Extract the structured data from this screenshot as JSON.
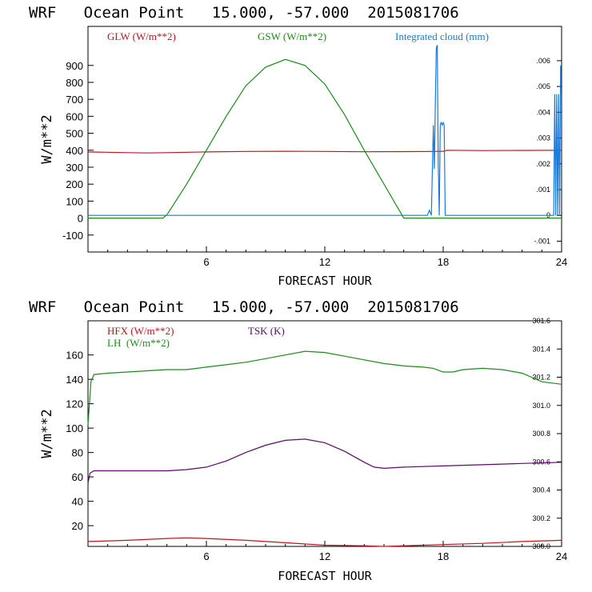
{
  "chart_data": [
    {
      "type": "line",
      "title": "WRF   Ocean Point   15.000, -57.000  2015081706",
      "xlabel": "FORECAST HOUR",
      "ylabel": "W/m**2",
      "xlim": [
        0,
        24
      ],
      "ylim": [
        -200,
        1130
      ],
      "x_ticks": [
        "6",
        "12",
        "18",
        "24"
      ],
      "y_ticks": [
        "-100",
        "0",
        "100",
        "200",
        "300",
        "400",
        "500",
        "600",
        "700",
        "800",
        "900"
      ],
      "y2_ticks": [
        "-.001",
        "0",
        ".001",
        ".002",
        ".003",
        ".004",
        ".005",
        ".006"
      ],
      "y2_range": [
        -0.00142,
        0.00733
      ],
      "series": [
        {
          "name": "GLW (W/m**2)",
          "color": "#c0141e",
          "axis": "left",
          "x": [
            0,
            2,
            3,
            4,
            6,
            8,
            10,
            12,
            14,
            16,
            17.5,
            18,
            18.2,
            20,
            22,
            24
          ],
          "y": [
            390,
            386,
            384,
            386,
            390,
            393,
            394,
            393,
            391,
            392,
            393,
            394,
            400,
            398,
            399,
            400
          ]
        },
        {
          "name": "GSW (W/m**2)",
          "color": "#1a8c1a",
          "axis": "left",
          "x": [
            0,
            3.8,
            4,
            5,
            6,
            7,
            8,
            9,
            10,
            11,
            12,
            13,
            14,
            15,
            16,
            24
          ],
          "y": [
            0,
            0,
            20,
            200,
            400,
            600,
            780,
            890,
            935,
            900,
            790,
            610,
            400,
            200,
            0,
            0
          ]
        },
        {
          "name": "Integrated cloud (mm)",
          "color": "#1a7ad9",
          "axis": "right",
          "x": [
            0,
            17.2,
            17.3,
            17.4,
            17.5,
            17.55,
            17.6,
            17.65,
            17.7,
            17.75,
            17.8,
            17.85,
            17.9,
            17.95,
            18.0,
            18.05,
            18.1,
            18.15,
            18.2,
            18.3,
            23.6,
            23.65,
            23.7,
            23.75,
            23.8,
            23.85,
            23.9,
            23.95,
            24.0
          ],
          "y": [
            0,
            0,
            0.0002,
            0,
            0.0035,
            0.0018,
            0.0042,
            0.0065,
            0.0066,
            0.002,
            0,
            0.0035,
            0.0036,
            0.0035,
            0.0036,
            0.0035,
            0,
            0,
            0,
            0,
            0,
            0.0047,
            0,
            0.0047,
            0,
            0.0047,
            0,
            0.0058,
            0.0058
          ]
        }
      ]
    },
    {
      "type": "line",
      "title": "WRF   Ocean Point   15.000, -57.000  2015081706",
      "xlabel": "FORECAST HOUR",
      "ylabel": "W/m**2",
      "xlim": [
        0,
        24
      ],
      "ylim": [
        3,
        188
      ],
      "x_ticks": [
        "6",
        "12",
        "18",
        "24"
      ],
      "y_ticks": [
        "20",
        "40",
        "60",
        "80",
        "100",
        "120",
        "140",
        "160"
      ],
      "y2_ticks": [
        "300.0",
        "300.2",
        "300.4",
        "300.6",
        "300.8",
        "301.0",
        "301.2",
        "301.4",
        "301.6"
      ],
      "y2_range": [
        300.0,
        301.6
      ],
      "series": [
        {
          "name": "HFX (W/m**2)",
          "color": "#c0141e",
          "axis": "left",
          "x": [
            0,
            2,
            4,
            5,
            6,
            8,
            10,
            12,
            14,
            15,
            16,
            18,
            20,
            22,
            24
          ],
          "y": [
            7,
            8,
            9.5,
            10,
            9.5,
            8,
            6,
            4,
            3.5,
            3,
            3.5,
            4.5,
            5.5,
            7,
            8
          ]
        },
        {
          "name": "LH  (W/m**2)",
          "color": "#1a8c1a",
          "axis": "left",
          "x": [
            0,
            0.15,
            0.3,
            1,
            2,
            3,
            4,
            5,
            6,
            7,
            8,
            9,
            10,
            11,
            12,
            13,
            14,
            15,
            16,
            17,
            17.5,
            18,
            18.5,
            19,
            20,
            21,
            22,
            23,
            24
          ],
          "y": [
            103,
            138,
            144,
            145,
            146,
            147,
            148,
            148,
            150,
            152,
            154,
            157,
            160,
            163,
            162,
            159,
            156,
            153,
            151,
            150,
            149,
            146,
            146,
            148,
            149,
            148,
            145,
            138,
            136
          ]
        },
        {
          "name": "TSK (K)",
          "color": "#5a0a6a",
          "axis": "left",
          "x": [
            0,
            0.1,
            0.3,
            2,
            4,
            5,
            6,
            7,
            8,
            9,
            10,
            11,
            12,
            13,
            14,
            14.5,
            15,
            16,
            18,
            20,
            22,
            24
          ],
          "y": [
            55,
            63,
            65,
            65,
            65,
            66,
            68,
            73,
            80,
            86,
            90,
            91,
            88,
            81,
            72,
            68,
            67,
            68,
            69,
            70,
            71,
            72
          ]
        }
      ]
    }
  ]
}
